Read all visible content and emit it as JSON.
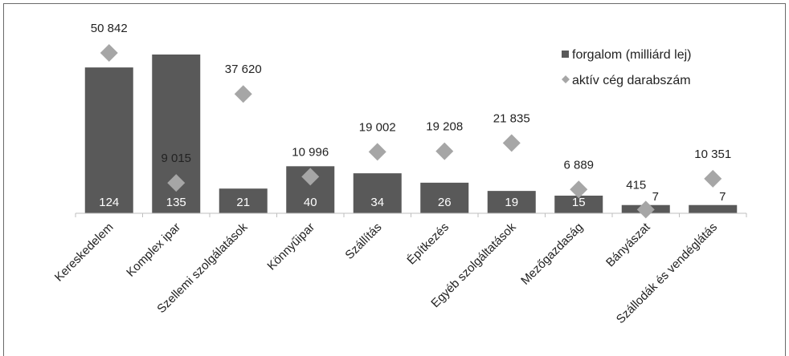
{
  "chart_data": {
    "type": "bar",
    "categories": [
      "Kereskedelem",
      "Komplex ipar",
      "Szellemi szolgálatások",
      "Könnyűipar",
      "Szállítás",
      "Építkezés",
      "Egyéb szolgáltatások",
      "Mezőgazdaság",
      "Bányászat",
      "Szállodák és vendéglátás"
    ],
    "series": [
      {
        "name": "forgalom (milliárd lej)",
        "kind": "bar",
        "values": [
          124,
          135,
          21,
          40,
          34,
          26,
          19,
          15,
          7,
          7
        ],
        "labels": [
          "124",
          "135",
          "21",
          "40",
          "34",
          "26",
          "19",
          "15",
          "7",
          "7"
        ],
        "color": "#595959"
      },
      {
        "name": "aktív cég darabszám",
        "kind": "marker-diamond",
        "values": [
          50842,
          9015,
          37620,
          10996,
          19002,
          19208,
          21835,
          6889,
          415,
          10351
        ],
        "labels": [
          "50 842",
          "9 015",
          "37 620",
          "10 996",
          "19 002",
          "19 208",
          "21 835",
          "6 889",
          "415",
          "10 351"
        ],
        "color": "#a6a6a6"
      }
    ],
    "legend": {
      "position": "top-right"
    },
    "grid": false
  }
}
